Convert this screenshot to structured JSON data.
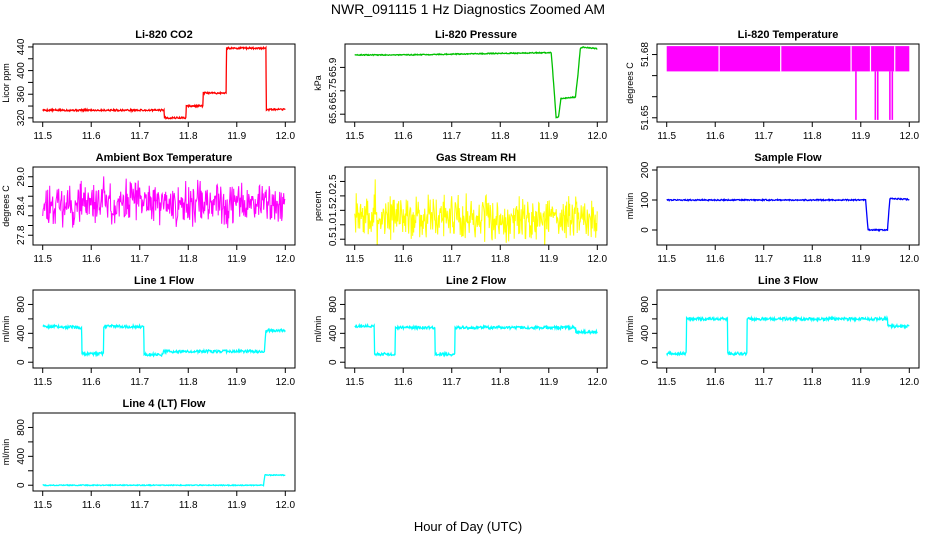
{
  "figure": {
    "title": "NWR_091115  1 Hz Diagnostics Zoomed AM",
    "xlabel": "Hour of Day (UTC)"
  },
  "chart_data": [
    {
      "id": "co2",
      "type": "line",
      "title": "Li-820 CO2",
      "ylabel": "Licor ppm",
      "color": "#ff0000",
      "xlim": [
        11.48,
        12.02
      ],
      "ylim": [
        313,
        445
      ],
      "xticks": [
        11.5,
        11.6,
        11.7,
        11.8,
        11.9,
        12.0
      ],
      "xtick_labels": [
        "11.5",
        "11.6",
        "11.7",
        "11.8",
        "11.9",
        "12.0"
      ],
      "yticks": [
        320,
        340,
        360,
        380,
        400,
        420,
        440
      ],
      "ytick_labels": [
        "320",
        "",
        "360",
        "",
        "400",
        "",
        "440"
      ],
      "noise": 1.5,
      "x": [
        11.5,
        11.75,
        11.751,
        11.795,
        11.796,
        11.83,
        11.831,
        11.878,
        11.879,
        11.96,
        11.961,
        12.0
      ],
      "y": [
        333,
        333,
        320,
        320,
        340,
        340,
        362,
        362,
        438,
        438,
        334,
        334
      ]
    },
    {
      "id": "pressure",
      "type": "line",
      "title": "Li-820 Pressure",
      "ylabel": "kPa",
      "color": "#00c000",
      "xlim": [
        11.48,
        12.02
      ],
      "ylim": [
        65.55,
        66.05
      ],
      "xticks": [
        11.5,
        11.6,
        11.7,
        11.8,
        11.9,
        12.0
      ],
      "xtick_labels": [
        "11.5",
        "11.6",
        "11.7",
        "11.8",
        "11.9",
        "12.0"
      ],
      "yticks": [
        65.6,
        65.75,
        65.9
      ],
      "ytick_labels": [
        "65.6",
        "65.75",
        "65.9"
      ],
      "noise": 0.003,
      "x": [
        11.5,
        11.6,
        11.7,
        11.8,
        11.905,
        11.91,
        11.915,
        11.92,
        11.925,
        11.955,
        11.96,
        11.965,
        11.97,
        12.0
      ],
      "y": [
        65.98,
        65.98,
        65.985,
        65.99,
        65.995,
        65.8,
        65.58,
        65.58,
        65.7,
        65.71,
        65.85,
        66.02,
        66.03,
        66.02
      ]
    },
    {
      "id": "temp820",
      "type": "band",
      "title": "Li-820 Temperature",
      "ylabel": "degrees C",
      "color": "#ff00ff",
      "xlim": [
        11.48,
        12.02
      ],
      "ylim": [
        51.648,
        51.685
      ],
      "xticks": [
        11.5,
        11.6,
        11.7,
        11.8,
        11.9,
        12.0
      ],
      "xtick_labels": [
        "11.5",
        "11.6",
        "11.7",
        "11.8",
        "11.9",
        "12.0"
      ],
      "yticks": [
        51.65,
        51.66,
        51.67,
        51.68
      ],
      "ytick_labels": [
        "51.65",
        "",
        "",
        "51.68"
      ],
      "x_range": [
        11.5,
        12.0
      ],
      "band": [
        51.672,
        51.684
      ],
      "gaps": [
        11.608,
        11.735,
        11.88,
        11.92,
        11.97
      ],
      "spikes": [
        {
          "x": 11.89,
          "y": 51.649
        },
        {
          "x": 11.93,
          "y": 51.649
        },
        {
          "x": 11.935,
          "y": 51.649
        },
        {
          "x": 11.96,
          "y": 51.649
        },
        {
          "x": 11.965,
          "y": 51.649
        }
      ]
    },
    {
      "id": "ambient",
      "type": "noise",
      "title": "Ambient Box Temperature",
      "ylabel": "degrees C",
      "color": "#ff00ff",
      "xlim": [
        11.48,
        12.02
      ],
      "ylim": [
        27.6,
        29.2
      ],
      "xticks": [
        11.5,
        11.6,
        11.7,
        11.8,
        11.9,
        12.0
      ],
      "xtick_labels": [
        "11.5",
        "11.6",
        "11.7",
        "11.8",
        "11.9",
        "12.0"
      ],
      "yticks": [
        27.8,
        28.0,
        28.2,
        28.4,
        28.6,
        28.8,
        29.0
      ],
      "ytick_labels": [
        "27.8",
        "",
        "",
        "28.4",
        "",
        "",
        "29.0"
      ],
      "x_range": [
        11.5,
        12.0
      ],
      "mean": 28.45,
      "amplitude": 0.33,
      "seed": 11
    },
    {
      "id": "rh",
      "type": "noise",
      "title": "Gas Stream RH",
      "ylabel": "percent",
      "color": "#ffff00",
      "xlim": [
        11.48,
        12.02
      ],
      "ylim": [
        0.3,
        3.0
      ],
      "xticks": [
        11.5,
        11.6,
        11.7,
        11.8,
        11.9,
        12.0
      ],
      "xtick_labels": [
        "11.5",
        "11.6",
        "11.7",
        "11.8",
        "11.9",
        "12.0"
      ],
      "yticks": [
        0.5,
        1.0,
        1.5,
        2.0,
        2.5
      ],
      "ytick_labels": [
        "0.5",
        "1.0",
        "1.5",
        "2.0",
        "2.5"
      ],
      "x_range": [
        11.5,
        12.0
      ],
      "mean": 1.25,
      "amplitude": 0.55,
      "seed": 7
    },
    {
      "id": "sample",
      "type": "line",
      "title": "Sample Flow",
      "ylabel": "ml/min",
      "color": "#0000ff",
      "xlim": [
        11.48,
        12.02
      ],
      "ylim": [
        -50,
        210
      ],
      "xticks": [
        11.5,
        11.6,
        11.7,
        11.8,
        11.9,
        12.0
      ],
      "xtick_labels": [
        "11.5",
        "11.6",
        "11.7",
        "11.8",
        "11.9",
        "12.0"
      ],
      "yticks": [
        0,
        100,
        200
      ],
      "ytick_labels": [
        "0",
        "100",
        "200"
      ],
      "noise": 2,
      "x": [
        11.5,
        11.91,
        11.915,
        11.955,
        11.96,
        12.0
      ],
      "y": [
        100,
        100,
        0,
        0,
        105,
        102
      ]
    },
    {
      "id": "line1",
      "type": "line",
      "title": "Line 1 Flow",
      "ylabel": "ml/min",
      "color": "#00ffff",
      "xlim": [
        11.48,
        12.02
      ],
      "ylim": [
        -80,
        1000
      ],
      "xticks": [
        11.5,
        11.6,
        11.7,
        11.8,
        11.9,
        12.0
      ],
      "xtick_labels": [
        "11.5",
        "11.6",
        "11.7",
        "11.8",
        "11.9",
        "12.0"
      ],
      "yticks": [
        0,
        200,
        400,
        600,
        800
      ],
      "ytick_labels": [
        "0",
        "",
        "400",
        "",
        "800"
      ],
      "noise": 20,
      "x": [
        11.5,
        11.58,
        11.581,
        11.625,
        11.626,
        11.708,
        11.709,
        11.745,
        11.75,
        11.957,
        11.96,
        12.0
      ],
      "y": [
        500,
        480,
        120,
        120,
        500,
        490,
        110,
        100,
        150,
        150,
        440,
        440
      ]
    },
    {
      "id": "line2",
      "type": "line",
      "title": "Line 2 Flow",
      "ylabel": "ml/min",
      "color": "#00ffff",
      "xlim": [
        11.48,
        12.02
      ],
      "ylim": [
        -80,
        1000
      ],
      "xticks": [
        11.5,
        11.6,
        11.7,
        11.8,
        11.9,
        12.0
      ],
      "xtick_labels": [
        "11.5",
        "11.6",
        "11.7",
        "11.8",
        "11.9",
        "12.0"
      ],
      "yticks": [
        0,
        200,
        400,
        600,
        800
      ],
      "ytick_labels": [
        "0",
        "",
        "400",
        "",
        "800"
      ],
      "noise": 20,
      "x": [
        11.5,
        11.54,
        11.541,
        11.583,
        11.584,
        11.665,
        11.666,
        11.706,
        11.707,
        11.955,
        11.956,
        12.0
      ],
      "y": [
        500,
        500,
        110,
        110,
        480,
        480,
        110,
        110,
        480,
        480,
        420,
        420
      ]
    },
    {
      "id": "line3",
      "type": "line",
      "title": "Line 3 Flow",
      "ylabel": "ml/min",
      "color": "#00ffff",
      "xlim": [
        11.48,
        12.02
      ],
      "ylim": [
        -80,
        1000
      ],
      "xticks": [
        11.5,
        11.6,
        11.7,
        11.8,
        11.9,
        12.0
      ],
      "xtick_labels": [
        "11.5",
        "11.6",
        "11.7",
        "11.8",
        "11.9",
        "12.0"
      ],
      "yticks": [
        0,
        200,
        400,
        600,
        800
      ],
      "ytick_labels": [
        "0",
        "",
        "400",
        "",
        "800"
      ],
      "noise": 20,
      "x": [
        11.5,
        11.54,
        11.541,
        11.625,
        11.626,
        11.665,
        11.666,
        11.955,
        11.956,
        12.0
      ],
      "y": [
        120,
        120,
        600,
        600,
        120,
        120,
        600,
        600,
        500,
        500
      ]
    },
    {
      "id": "line4",
      "type": "line",
      "title": "Line 4 (LT) Flow",
      "ylabel": "ml/min",
      "color": "#00ffff",
      "xlim": [
        11.48,
        12.02
      ],
      "ylim": [
        -80,
        1000
      ],
      "xticks": [
        11.5,
        11.6,
        11.7,
        11.8,
        11.9,
        12.0
      ],
      "xtick_labels": [
        "11.5",
        "11.6",
        "11.7",
        "11.8",
        "11.9",
        "12.0"
      ],
      "yticks": [
        0,
        200,
        400,
        600,
        800
      ],
      "ytick_labels": [
        "0",
        "",
        "400",
        "",
        "800"
      ],
      "noise": 6,
      "x": [
        11.5,
        11.955,
        11.958,
        12.0
      ],
      "y": [
        0,
        0,
        140,
        140
      ]
    }
  ]
}
